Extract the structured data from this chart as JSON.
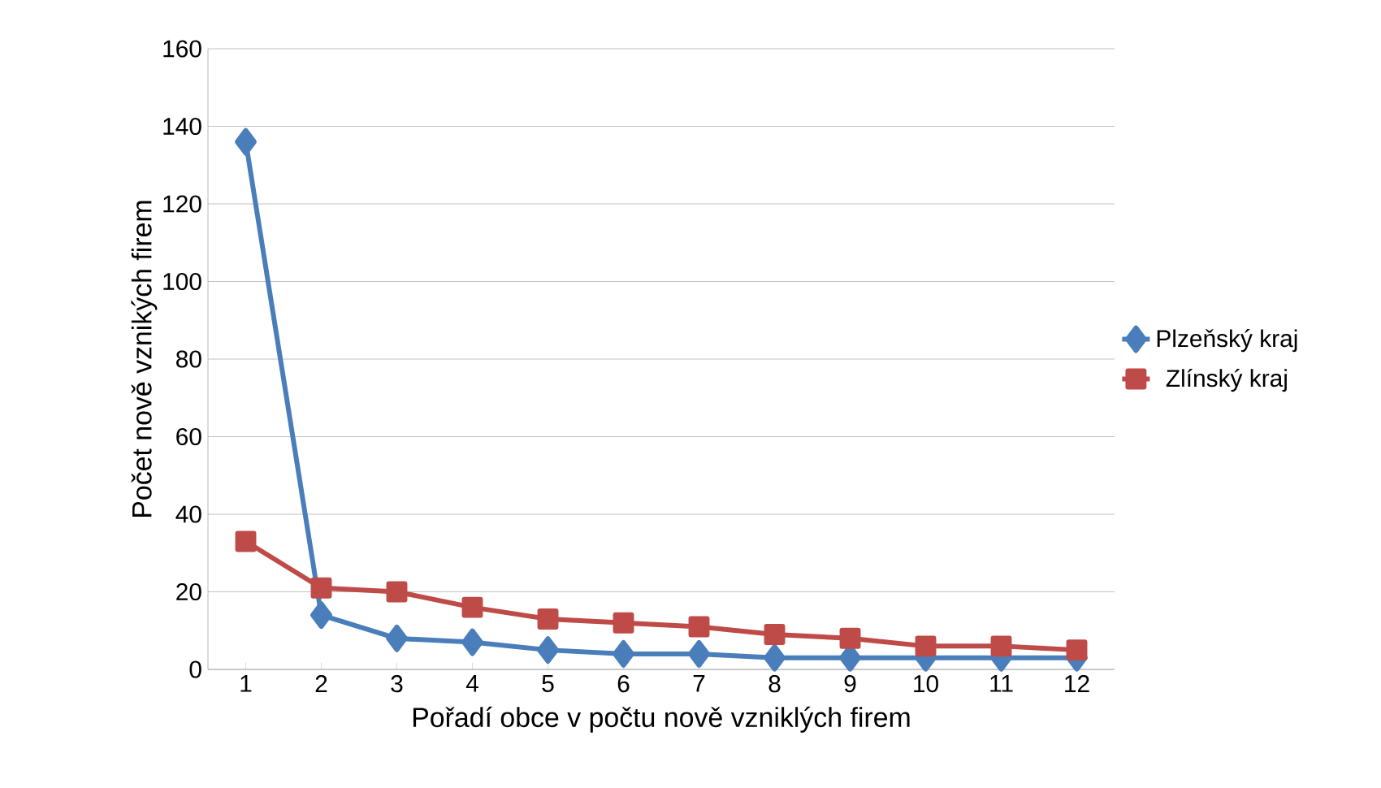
{
  "chart_data": {
    "type": "line",
    "xlabel": "Pořadí obce v počtu nově vzniklých firem",
    "ylabel": "Počet nově vznikých firem",
    "categories": [
      "1",
      "2",
      "3",
      "4",
      "5",
      "6",
      "7",
      "8",
      "9",
      "10",
      "11",
      "12"
    ],
    "series": [
      {
        "name": "Plzeňský kraj",
        "color": "#4a7ebb",
        "marker": "diamond",
        "values": [
          136,
          14,
          8,
          7,
          5,
          4,
          4,
          3,
          3,
          3,
          3,
          3
        ]
      },
      {
        "name": "Zlínský kraj",
        "color": "#be4b48",
        "marker": "square",
        "values": [
          33,
          21,
          20,
          16,
          13,
          12,
          11,
          9,
          8,
          6,
          6,
          5
        ]
      }
    ],
    "ylim": [
      0,
      160
    ],
    "yticks": [
      0,
      20,
      40,
      60,
      80,
      100,
      120,
      140,
      160
    ],
    "grid": "y",
    "legend": "right",
    "line_style": "solid"
  }
}
